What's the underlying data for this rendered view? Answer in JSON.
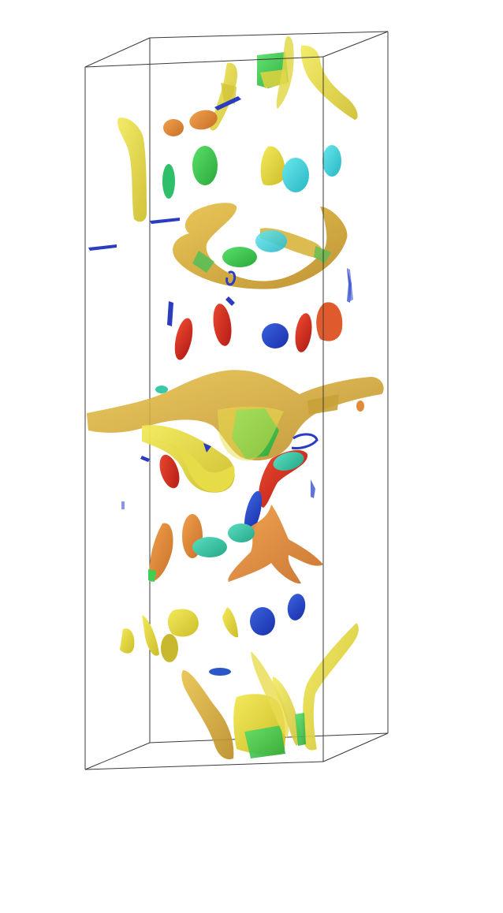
{
  "scene": {
    "kind": "3d-isosurface-render",
    "background": "#ffffff",
    "frame_color": "#3a3a3a",
    "palette": {
      "yellow": "#e8dc3c",
      "gold": "#d9a934",
      "orange": "#e08a3a",
      "red": "#d4281f",
      "green": "#3fcf52",
      "teal": "#38c9a8",
      "cyan": "#4ad8e0",
      "blue": "#2440c8",
      "deep_blue": "#1a2ab8"
    }
  }
}
